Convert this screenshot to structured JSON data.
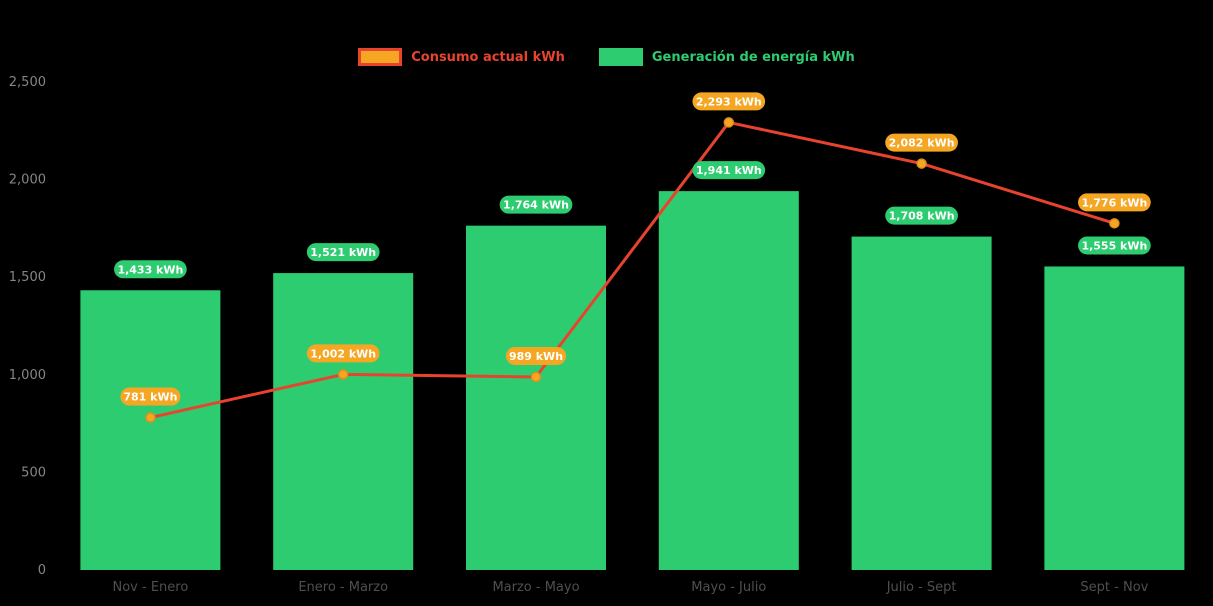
{
  "chart_data": {
    "type": "bar+line",
    "title": "",
    "categories": [
      "Nov - Enero",
      "Enero - Marzo",
      "Marzo - Mayo",
      "Mayo - Julio",
      "Julio - Sept",
      "Sept - Nov"
    ],
    "series": [
      {
        "name": "Generación de energía kWh",
        "type": "bar",
        "color": "#2ecc71",
        "values": [
          1433,
          1521,
          1764,
          1941,
          1708,
          1555
        ]
      },
      {
        "name": "Consumo actual kWh",
        "type": "line",
        "color": "#e8432e",
        "marker_color": "#f5a623",
        "values": [
          781,
          1002,
          989,
          2293,
          2082,
          1776
        ]
      }
    ],
    "ylim": [
      0,
      2500
    ],
    "yticks": [
      0,
      500,
      1000,
      1500,
      2000,
      2500
    ],
    "ytick_labels": [
      "0",
      "500",
      "1,000",
      "1,500",
      "2,000",
      "2,500"
    ],
    "value_label_suffix": " kWh",
    "legend_position": "top",
    "grid": false,
    "colors": {
      "background": "#000000",
      "tick_label": "#858585",
      "category_label": "#4f4f4f",
      "badge_text": "#ffffff"
    }
  }
}
